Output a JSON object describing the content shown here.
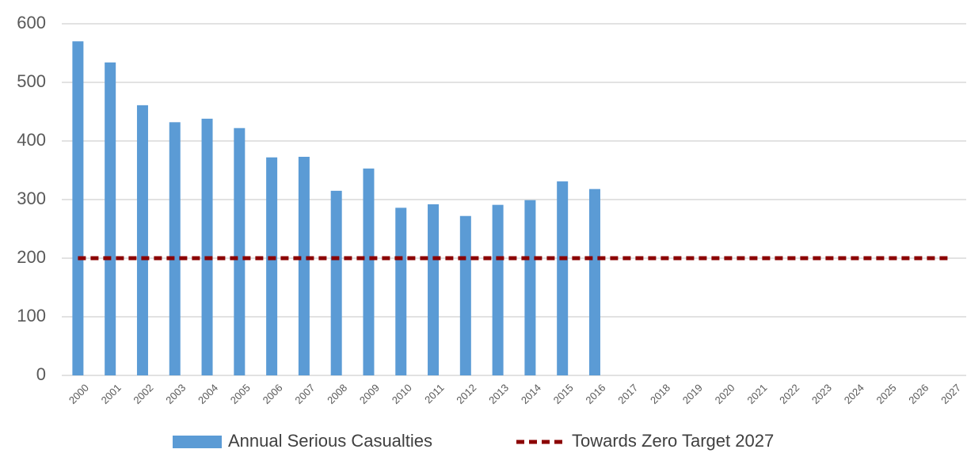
{
  "chart_data": {
    "type": "bar_line",
    "categories": [
      "2000",
      "2001",
      "2002",
      "2003",
      "2004",
      "2005",
      "2006",
      "2007",
      "2008",
      "2009",
      "2010",
      "2011",
      "2012",
      "2013",
      "2014",
      "2015",
      "2016",
      "2017",
      "2018",
      "2019",
      "2020",
      "2021",
      "2022",
      "2023",
      "2024",
      "2025",
      "2026",
      "2027"
    ],
    "series": [
      {
        "name": "Annual Serious Casualties",
        "type": "bar",
        "color": "#5b9bd5",
        "values": [
          570,
          534,
          461,
          432,
          438,
          422,
          372,
          373,
          315,
          353,
          286,
          292,
          272,
          291,
          299,
          331,
          318,
          null,
          null,
          null,
          null,
          null,
          null,
          null,
          null,
          null,
          null,
          null
        ]
      },
      {
        "name": "Towards Zero Target 2027",
        "type": "line",
        "dashed": true,
        "color": "#8b0000",
        "values": [
          200,
          200,
          200,
          200,
          200,
          200,
          200,
          200,
          200,
          200,
          200,
          200,
          200,
          200,
          200,
          200,
          200,
          200,
          200,
          200,
          200,
          200,
          200,
          200,
          200,
          200,
          200,
          200
        ]
      }
    ],
    "ylim": [
      0,
      600
    ],
    "yticks": [
      0,
      100,
      200,
      300,
      400,
      500,
      600
    ],
    "grid": true,
    "legend": "bottom"
  }
}
